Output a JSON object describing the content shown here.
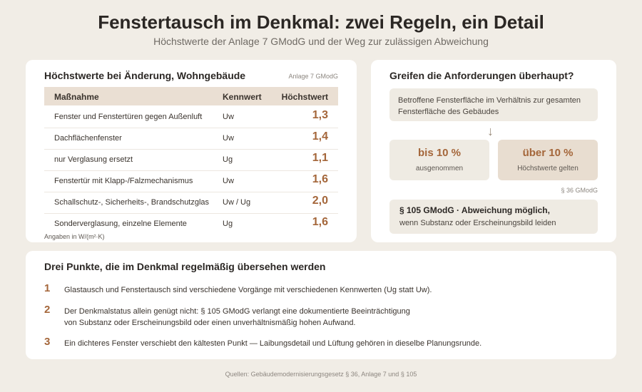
{
  "header": {
    "title": "Fenstertausch im Denkmal: zwei Regeln, ein Detail",
    "subtitle": "Höchstwerte der Anlage 7 GModG und der Weg zur zulässigen Abweichung"
  },
  "table_card": {
    "title": "Höchstwerte bei Änderung, Wohngebäude",
    "source": "Anlage 7 GModG",
    "columns": [
      "Maßnahme",
      "Kennwert",
      "Höchstwert"
    ],
    "rows": [
      {
        "measure": "Fenster und Fenstertüren gegen Außenluft",
        "key": "Uw",
        "value": "1,3"
      },
      {
        "measure": "Dachflächenfenster",
        "key": "Uw",
        "value": "1,4"
      },
      {
        "measure": "nur Verglasung ersetzt",
        "key": "Ug",
        "value": "1,1"
      },
      {
        "measure": "Fenstertür mit Klapp-/Falzmechanismus",
        "key": "Uw",
        "value": "1,6"
      },
      {
        "measure": "Schallschutz-, Sicherheits-, Brandschutzglas",
        "key": "Uw / Ug",
        "value": "2,0"
      },
      {
        "measure": "Sonderverglasung, einzelne Elemente",
        "key": "Ug",
        "value": "1,6"
      }
    ],
    "units": "Angaben in W/(m²·K)"
  },
  "flow_card": {
    "title": "Greifen die Anforderungen überhaupt?",
    "question": "Betroffene Fensterfläche im Verhältnis zur gesamten Fensterfläche des Gebäudes",
    "arrow": "↓",
    "left": {
      "big": "bis 10 %",
      "small": "ausgenommen"
    },
    "right": {
      "big": "über 10 %",
      "small": "Höchstwerte gelten"
    },
    "ref": "§ 36 GModG",
    "deviation": {
      "title": "§ 105 GModG · Abweichung möglich,",
      "text": "wenn Substanz oder Erscheinungsbild leiden"
    }
  },
  "points_card": {
    "title": "Drei Punkte, die im Denkmal regelmäßig übersehen werden",
    "items": [
      {
        "num": "1",
        "line1": "Glastausch und Fenstertausch sind verschiedene Vorgänge mit verschiedenen Kennwerten (Ug statt Uw).",
        "line2": ""
      },
      {
        "num": "2",
        "line1": "Der Denkmalstatus allein genügt nicht: § 105 GModG verlangt eine dokumentierte Beeinträchtigung",
        "line2": "von Substanz oder Erscheinungsbild oder einen unverhältnismäßig hohen Aufwand."
      },
      {
        "num": "3",
        "line1": "Ein dichteres Fenster verschiebt den kältesten Punkt — Laibungsdetail und Lüftung gehören in dieselbe Planungsrunde.",
        "line2": ""
      }
    ]
  },
  "footer": "Quellen: Gebäudemodernisierungsgesetz § 36, Anlage 7 und § 105",
  "colors": {
    "accent": "#a4663a",
    "background": "#f1ede6",
    "table_header": "#eadfd3",
    "box": "#efebe3",
    "box_highlight": "#e8ddd0"
  }
}
